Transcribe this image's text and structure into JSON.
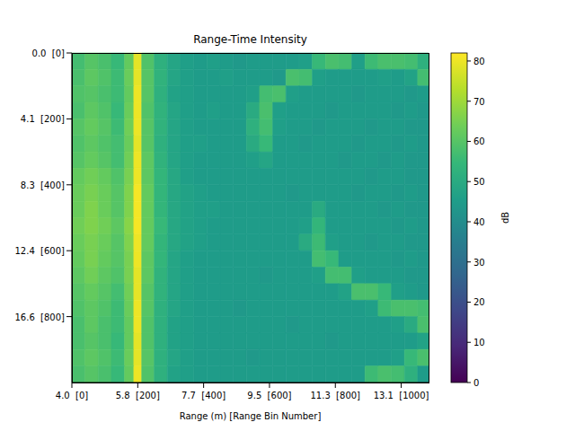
{
  "chart_data": {
    "type": "heatmap",
    "title": "Range-Time Intensity",
    "x_label": "Range (m) [Range Bin Number]",
    "colorbar_label": "dB",
    "xlim": [
      0,
      1083
    ],
    "ylim": [
      0,
      1000
    ],
    "xticks": [
      {
        "value": 0,
        "label": "4.0  [0]"
      },
      {
        "value": 200,
        "label": "5.8  [200]"
      },
      {
        "value": 400,
        "label": "7.7  [400]"
      },
      {
        "value": 600,
        "label": "9.5  [600]"
      },
      {
        "value": 800,
        "label": "11.3  [800]"
      },
      {
        "value": 1000,
        "label": "13.1  [1000]"
      }
    ],
    "yticks": [
      {
        "value": 0,
        "label": "0.0  [0]"
      },
      {
        "value": 200,
        "label": "4.1  [200]"
      },
      {
        "value": 400,
        "label": "8.3  [400]"
      },
      {
        "value": 600,
        "label": "12.4  [600]"
      },
      {
        "value": 800,
        "label": "16.6  [800]"
      }
    ],
    "cells": {
      "x_edges": [
        0,
        40,
        80,
        120,
        160,
        188,
        212,
        250,
        290,
        330,
        370,
        410,
        450,
        490,
        530,
        570,
        610,
        650,
        690,
        730,
        770,
        810,
        850,
        890,
        930,
        970,
        1010,
        1050,
        1083
      ],
      "y_edges": [
        0,
        50,
        100,
        150,
        200,
        250,
        300,
        350,
        400,
        450,
        500,
        550,
        600,
        650,
        700,
        750,
        800,
        850,
        900,
        950,
        1000
      ],
      "values": [
        [
          57,
          60,
          58,
          55,
          62,
          79,
          59,
          52,
          48,
          46,
          45,
          46,
          45,
          44,
          45,
          45,
          45,
          45,
          46,
          55,
          58,
          57,
          46,
          56,
          58,
          58,
          57,
          52
        ],
        [
          58,
          61,
          59,
          56,
          63,
          79,
          60,
          53,
          48,
          46,
          45,
          45,
          46,
          45,
          45,
          45,
          44,
          58,
          57,
          46,
          45,
          45,
          45,
          45,
          46,
          45,
          47,
          57
        ],
        [
          59,
          60,
          58,
          56,
          62,
          80,
          60,
          52,
          47,
          46,
          45,
          45,
          45,
          45,
          46,
          57,
          58,
          46,
          45,
          45,
          45,
          45,
          44,
          45,
          45,
          45,
          44,
          45
        ],
        [
          58,
          61,
          59,
          55,
          63,
          80,
          59,
          53,
          48,
          46,
          45,
          46,
          45,
          45,
          50,
          58,
          46,
          45,
          45,
          45,
          44,
          45,
          45,
          45,
          45,
          44,
          45,
          44
        ],
        [
          60,
          62,
          60,
          56,
          64,
          80,
          60,
          53,
          48,
          46,
          45,
          45,
          45,
          45,
          52,
          57,
          46,
          45,
          45,
          44,
          45,
          45,
          45,
          44,
          45,
          45,
          44,
          44
        ],
        [
          59,
          61,
          59,
          57,
          63,
          79,
          60,
          52,
          48,
          46,
          46,
          45,
          45,
          45,
          50,
          55,
          45,
          45,
          44,
          45,
          45,
          45,
          44,
          45,
          45,
          44,
          45,
          44
        ],
        [
          60,
          62,
          60,
          57,
          64,
          80,
          61,
          53,
          48,
          46,
          45,
          45,
          45,
          45,
          46,
          48,
          45,
          45,
          45,
          45,
          45,
          44,
          45,
          45,
          44,
          45,
          44,
          44
        ],
        [
          62,
          64,
          62,
          59,
          65,
          80,
          61,
          54,
          49,
          46,
          45,
          45,
          45,
          45,
          45,
          45,
          45,
          45,
          45,
          45,
          45,
          45,
          45,
          44,
          45,
          45,
          44,
          44
        ],
        [
          63,
          65,
          63,
          60,
          66,
          81,
          62,
          54,
          49,
          47,
          46,
          45,
          45,
          45,
          45,
          45,
          45,
          44,
          45,
          45,
          45,
          45,
          44,
          45,
          45,
          44,
          45,
          44
        ],
        [
          63,
          66,
          63,
          60,
          66,
          81,
          62,
          54,
          49,
          47,
          46,
          46,
          45,
          45,
          45,
          45,
          45,
          45,
          45,
          50,
          45,
          45,
          45,
          45,
          44,
          45,
          44,
          44
        ],
        [
          64,
          66,
          64,
          61,
          67,
          81,
          62,
          55,
          49,
          47,
          46,
          45,
          45,
          45,
          45,
          45,
          45,
          45,
          46,
          54,
          45,
          45,
          45,
          45,
          45,
          44,
          45,
          44
        ],
        [
          63,
          65,
          63,
          60,
          66,
          80,
          62,
          54,
          49,
          47,
          46,
          45,
          45,
          45,
          45,
          45,
          45,
          45,
          50,
          56,
          46,
          45,
          45,
          44,
          45,
          45,
          44,
          44
        ],
        [
          62,
          65,
          62,
          60,
          65,
          80,
          61,
          54,
          48,
          46,
          45,
          45,
          45,
          45,
          45,
          45,
          45,
          45,
          45,
          57,
          55,
          45,
          45,
          45,
          45,
          44,
          45,
          44
        ],
        [
          61,
          64,
          61,
          59,
          65,
          79,
          61,
          53,
          48,
          46,
          45,
          45,
          45,
          45,
          45,
          44,
          45,
          45,
          45,
          46,
          57,
          57,
          46,
          45,
          45,
          45,
          44,
          44
        ],
        [
          60,
          62,
          60,
          57,
          64,
          79,
          60,
          53,
          48,
          46,
          45,
          45,
          45,
          45,
          45,
          45,
          45,
          45,
          45,
          45,
          45,
          47,
          58,
          58,
          55,
          46,
          45,
          44
        ],
        [
          59,
          61,
          59,
          56,
          63,
          80,
          60,
          52,
          48,
          46,
          45,
          45,
          45,
          44,
          45,
          45,
          45,
          45,
          45,
          45,
          45,
          45,
          45,
          46,
          56,
          58,
          58,
          57
        ],
        [
          58,
          61,
          58,
          56,
          62,
          80,
          59,
          52,
          47,
          46,
          45,
          45,
          45,
          45,
          45,
          45,
          45,
          44,
          45,
          45,
          45,
          45,
          45,
          45,
          45,
          46,
          50,
          58
        ],
        [
          58,
          60,
          58,
          55,
          62,
          79,
          59,
          52,
          47,
          46,
          45,
          45,
          45,
          45,
          45,
          45,
          45,
          45,
          45,
          45,
          44,
          45,
          45,
          45,
          45,
          45,
          45,
          47
        ],
        [
          59,
          61,
          59,
          56,
          63,
          79,
          60,
          52,
          48,
          46,
          45,
          45,
          45,
          45,
          44,
          45,
          45,
          45,
          45,
          45,
          45,
          45,
          45,
          45,
          45,
          46,
          55,
          58
        ],
        [
          58,
          60,
          58,
          55,
          62,
          80,
          59,
          52,
          47,
          46,
          45,
          45,
          45,
          45,
          45,
          45,
          45,
          45,
          45,
          45,
          45,
          45,
          45,
          56,
          58,
          57,
          52,
          45
        ]
      ]
    },
    "colorbar": {
      "range": [
        0,
        82
      ],
      "ticks": [
        0,
        10,
        20,
        30,
        40,
        50,
        60,
        70,
        80
      ]
    }
  }
}
